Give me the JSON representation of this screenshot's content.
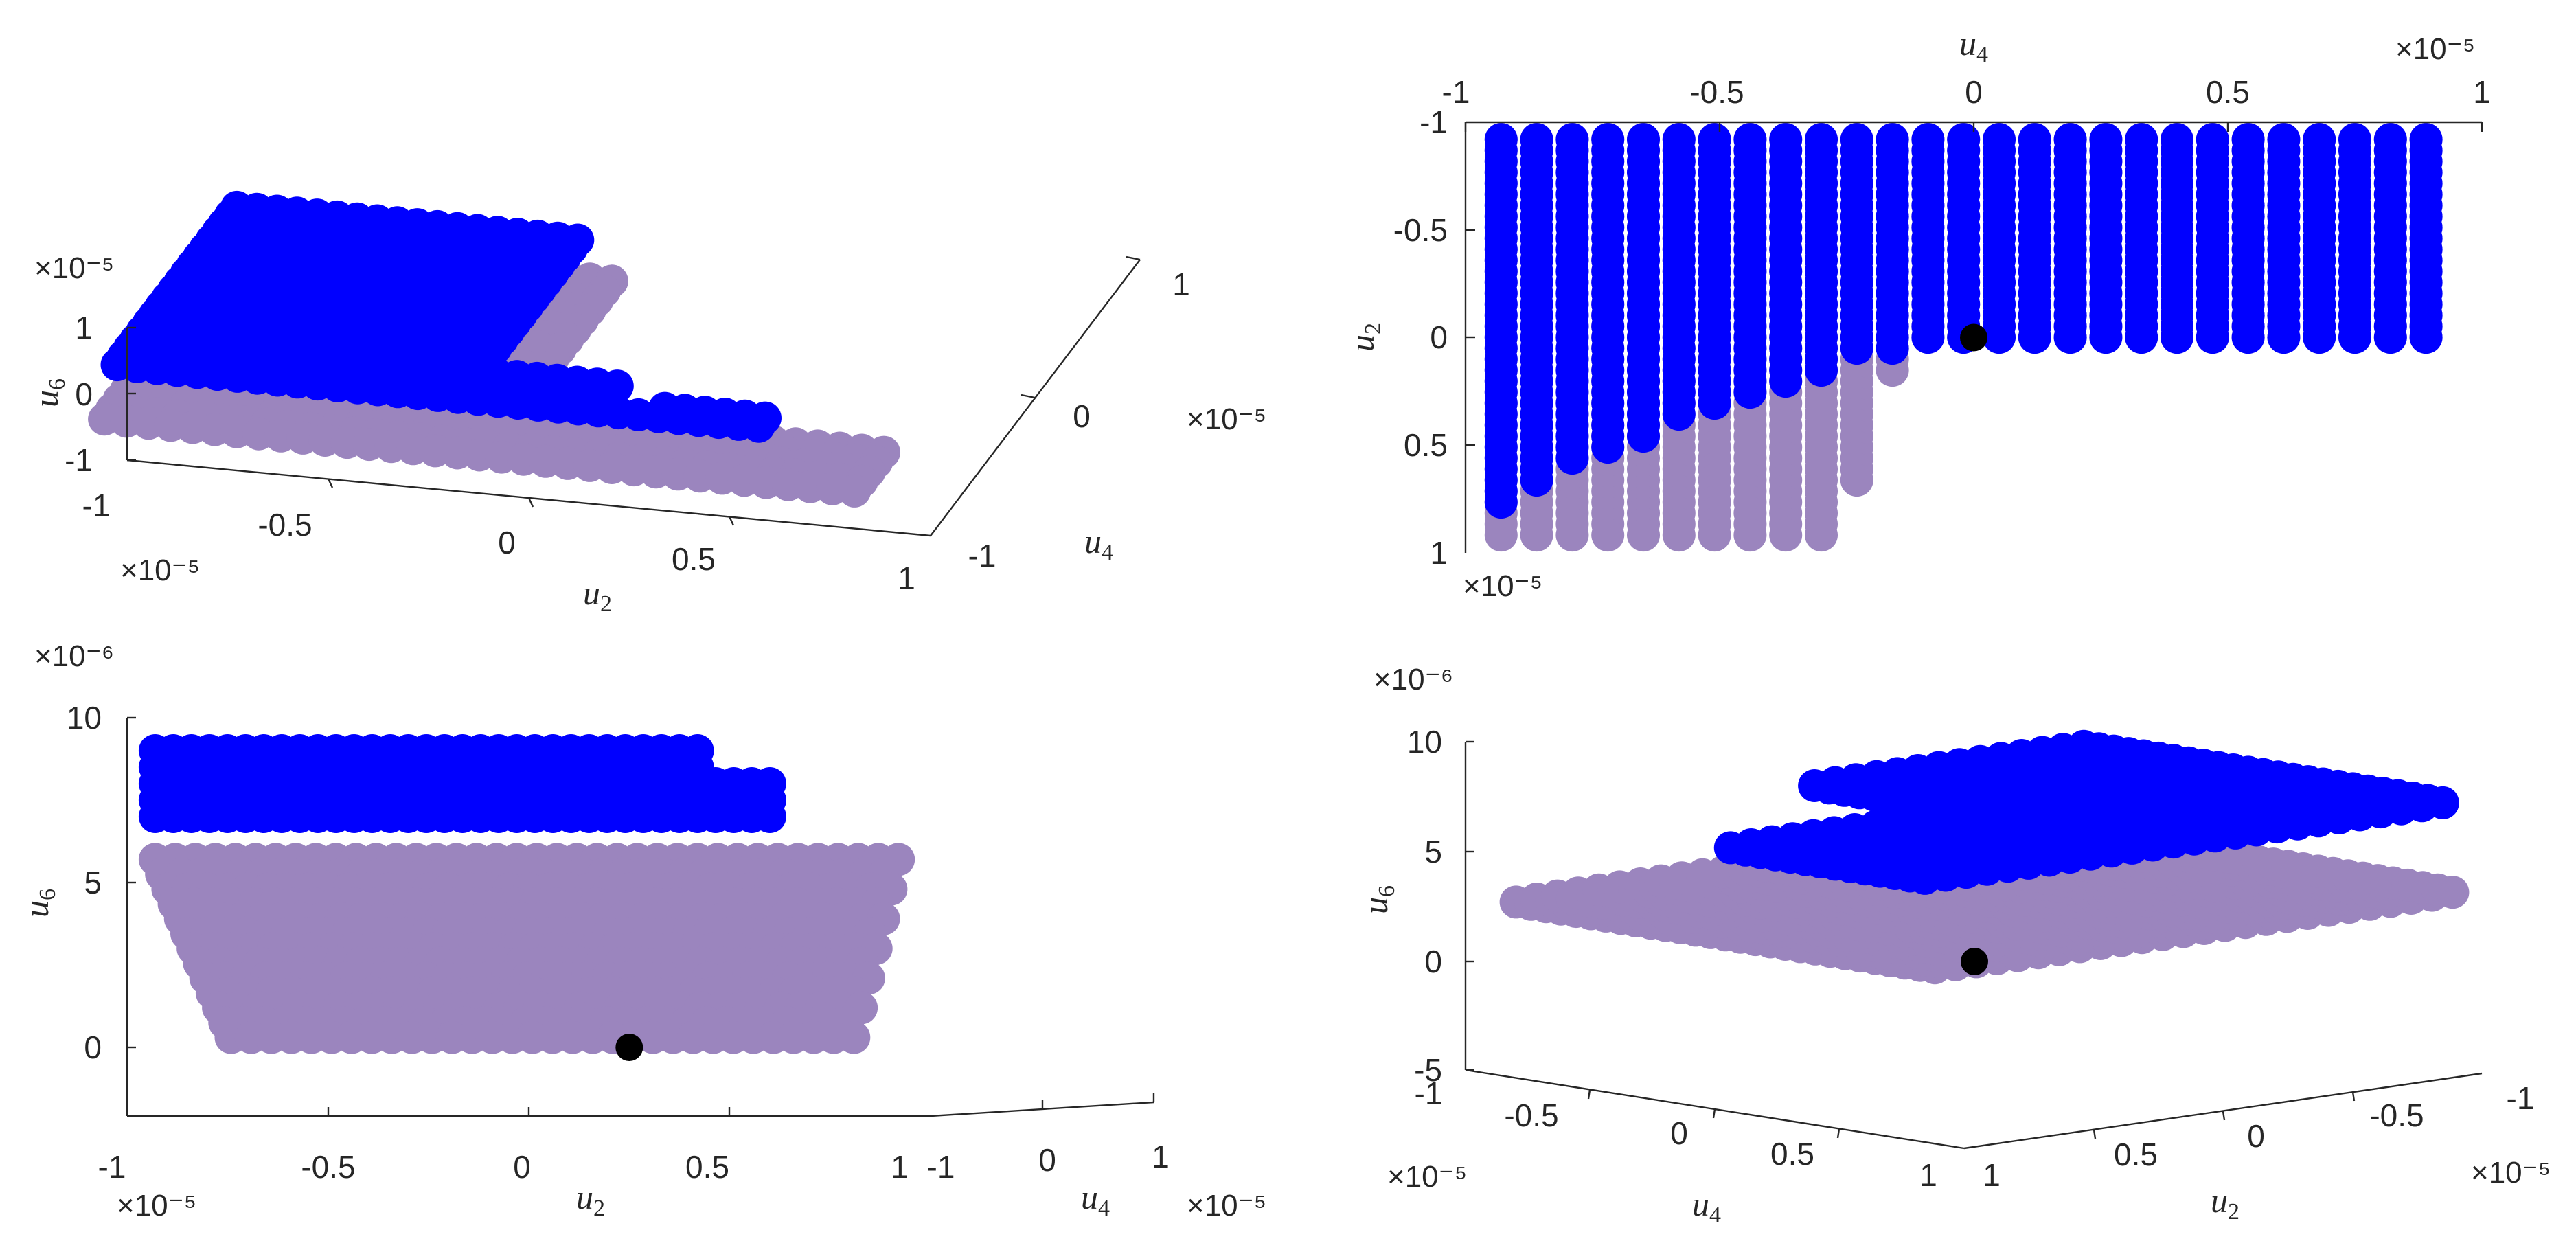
{
  "colors": {
    "series_upper": "#0000ff",
    "series_lower": "#9b85be",
    "equilibrium": "#000000",
    "axis": "#262626"
  },
  "chart_data": [
    {
      "type": "scatter",
      "view": "3d-isometric",
      "xlabel": "u2",
      "ylabel": "u4",
      "zlabel": "u6",
      "xlim": [
        -1e-05,
        1e-05
      ],
      "ylim": [
        -1e-05,
        1e-05
      ],
      "zlim": [
        -1e-05,
        1e-05
      ],
      "xticks": [
        "-1",
        "-0.5",
        "0",
        "0.5",
        "1"
      ],
      "yticks": [
        "-1",
        "0",
        "1"
      ],
      "zticks": [
        "-1",
        "0",
        "1"
      ],
      "x_exponent": "×10⁻⁵",
      "y_exponent": "×10⁻⁵",
      "z_exponent": "×10⁻⁵",
      "grid": false,
      "series": [
        {
          "role": "upper",
          "color": "#0000ff",
          "region": "L-shaped band; u4 from -1e-5 to 1e-5 for u2 < 0, u4 ≤ 0 for u2 ≥ 0, z ≈ 0.7e-5"
        },
        {
          "role": "lower",
          "color": "#9b85be",
          "region": "full band u2 ∈ [-1e-5, 1e-5], z ≈ 0.1e-5"
        }
      ]
    },
    {
      "type": "scatter",
      "view": "top (u4 horizontal, u2 vertical)",
      "xlabel": "u4",
      "ylabel": "u2",
      "xlim": [
        -1e-05,
        1e-05
      ],
      "ylim": [
        -1e-05,
        1e-05
      ],
      "xticks": [
        "-1",
        "-0.5",
        "0",
        "0.5",
        "1"
      ],
      "yticks": [
        "-1",
        "-0.5",
        "0",
        "0.5",
        "1"
      ],
      "x_exponent": "×10⁻⁵",
      "y_exponent": "×10⁻⁵",
      "grid": false,
      "columns_u4": [
        -0.93,
        -0.86,
        -0.79,
        -0.72,
        -0.65,
        -0.58,
        -0.51,
        -0.44,
        -0.37,
        -0.3,
        -0.23,
        -0.16,
        -0.09,
        -0.02,
        0.05,
        0.12,
        0.19,
        0.26,
        0.33,
        0.4,
        0.47,
        0.54,
        0.61,
        0.68,
        0.75,
        0.82,
        0.89
      ],
      "upper_u2_max": [
        0.78,
        0.68,
        0.58,
        0.52,
        0.46,
        0.4,
        0.34,
        0.28,
        0.22,
        0.16,
        0.1,
        0.06,
        0.02,
        0.0,
        0.0,
        0.0,
        0.0,
        0.0,
        0.0,
        0.0,
        0.0,
        0.0,
        0.0,
        0.0,
        0.0,
        0.0,
        0.0
      ],
      "lower_u2_max": [
        0.92,
        0.92,
        0.92,
        0.92,
        0.92,
        0.92,
        0.92,
        0.92,
        0.92,
        0.92,
        0.7,
        0.2,
        0.02,
        0.0,
        0.0,
        0.0,
        0.0,
        0.0,
        0.0,
        0.0,
        0.0,
        0.0,
        0.0,
        0.0,
        0.0,
        0.0,
        0.0
      ],
      "u2_min": -0.92,
      "equilibrium": {
        "u4": 0,
        "u2": 0
      }
    },
    {
      "type": "scatter",
      "view": "side (u2 horizontal, u6 vertical)",
      "xlabel": "u2",
      "ylabel": "u4",
      "zlabel": "u6",
      "xlim": [
        -1e-05,
        1e-05
      ],
      "ylim": [
        -1e-05,
        1e-05
      ],
      "zlim": [
        -2e-06,
        1e-05
      ],
      "xticks": [
        "-1",
        "-0.5",
        "0",
        "0.5",
        "1"
      ],
      "yticks": [
        "-1",
        "0",
        "1"
      ],
      "zticks": [
        "0",
        "5",
        "10"
      ],
      "x_exponent": "×10⁻⁵",
      "y_exponent": "×10⁻⁵",
      "z_exponent": "×10⁻⁶",
      "grid": false,
      "series": [
        {
          "role": "upper",
          "color": "#0000ff",
          "u6_range": [
            6.5e-06,
            9e-06
          ]
        },
        {
          "role": "lower",
          "color": "#9b85be",
          "u6_range": [
            0,
            6e-06
          ]
        }
      ],
      "equilibrium": {
        "u2": 2.5e-06,
        "u6": 0
      }
    },
    {
      "type": "scatter",
      "view": "3d rotated",
      "xlabel": "u4",
      "ylabel": "u2",
      "zlabel": "u6",
      "xlim": [
        -1e-05,
        1e-05
      ],
      "ylim": [
        -1e-05,
        1e-05
      ],
      "zlim": [
        -5e-06,
        1e-05
      ],
      "xticks": [
        "-1",
        "-0.5",
        "0",
        "0.5",
        "1"
      ],
      "yticks": [
        "1",
        "0.5",
        "0",
        "-0.5",
        "-1"
      ],
      "zticks": [
        "-5",
        "0",
        "5",
        "10"
      ],
      "x_exponent": "×10⁻⁵",
      "y_exponent": "×10⁻⁵",
      "z_exponent": "×10⁻⁶",
      "grid": false,
      "series": [
        {
          "role": "upper",
          "color": "#0000ff",
          "u6_approx": 7e-06
        },
        {
          "role": "lower",
          "color": "#9b85be",
          "u6_approx": 3e-06
        }
      ],
      "equilibrium": {
        "u4": 0,
        "u2": 0,
        "u6": 0
      }
    }
  ]
}
